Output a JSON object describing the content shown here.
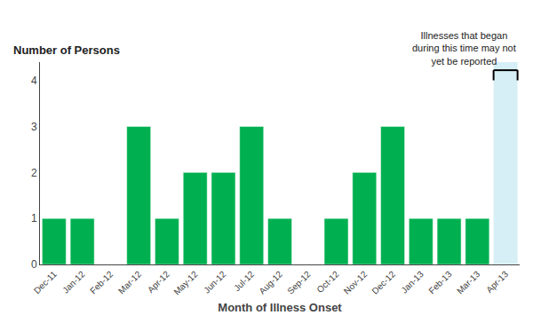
{
  "chart_data": {
    "type": "bar",
    "categories": [
      "Dec-11",
      "Jan-12",
      "Feb-12",
      "Mar-12",
      "Apr-12",
      "May-12",
      "Jun-12",
      "Jul-12",
      "Aug-12",
      "Sep-12",
      "Oct-12",
      "Nov-12",
      "Dec-12",
      "Jan-13",
      "Feb-13",
      "Mar-13",
      "Apr-13"
    ],
    "values": [
      1,
      1,
      0,
      3,
      1,
      2,
      2,
      3,
      1,
      0,
      1,
      2,
      3,
      1,
      1,
      1,
      0
    ],
    "color": "#00b050",
    "xlabel": "Month of Illness Onset",
    "ylabel": "Number of Persons",
    "ylim": [
      0,
      4.4
    ],
    "yticks": [
      0,
      1,
      2,
      3,
      4
    ],
    "grid": false,
    "annotations": [
      {
        "text": "Illnesses that began\nduring this time may not\nyet be reported",
        "x": "Apr-13",
        "color": "#d6eef5"
      }
    ]
  }
}
